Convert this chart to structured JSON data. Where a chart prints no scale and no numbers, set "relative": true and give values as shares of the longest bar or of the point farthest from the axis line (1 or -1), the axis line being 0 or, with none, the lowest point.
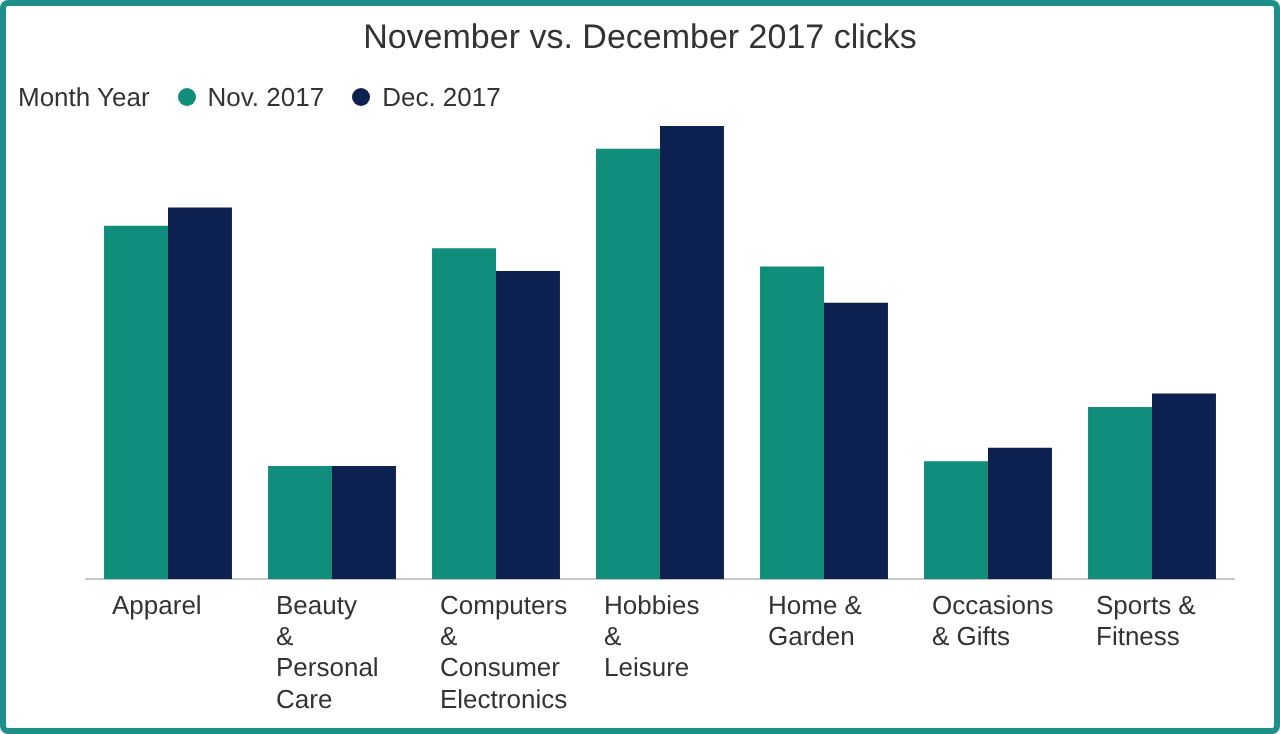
{
  "chart_data": {
    "type": "bar",
    "title": "November vs. December 2017 clicks",
    "legend_title": "Month Year",
    "legend": "top left",
    "relative": true,
    "categories": [
      "Apparel",
      "Beauty & Personal Care",
      "Computers & Consumer Electronics",
      "Hobbies & Leisure",
      "Home & Garden",
      "Occasions & Gifts",
      "Sports & Fitness"
    ],
    "series": [
      {
        "name": "Nov. 2017",
        "color": "#118d7b",
        "values": [
          0.78,
          0.25,
          0.73,
          0.95,
          0.69,
          0.26,
          0.38
        ]
      },
      {
        "name": "Dec. 2017",
        "color": "#0d2150",
        "values": [
          0.82,
          0.25,
          0.68,
          1,
          0.61,
          0.29,
          0.41
        ]
      }
    ]
  }
}
